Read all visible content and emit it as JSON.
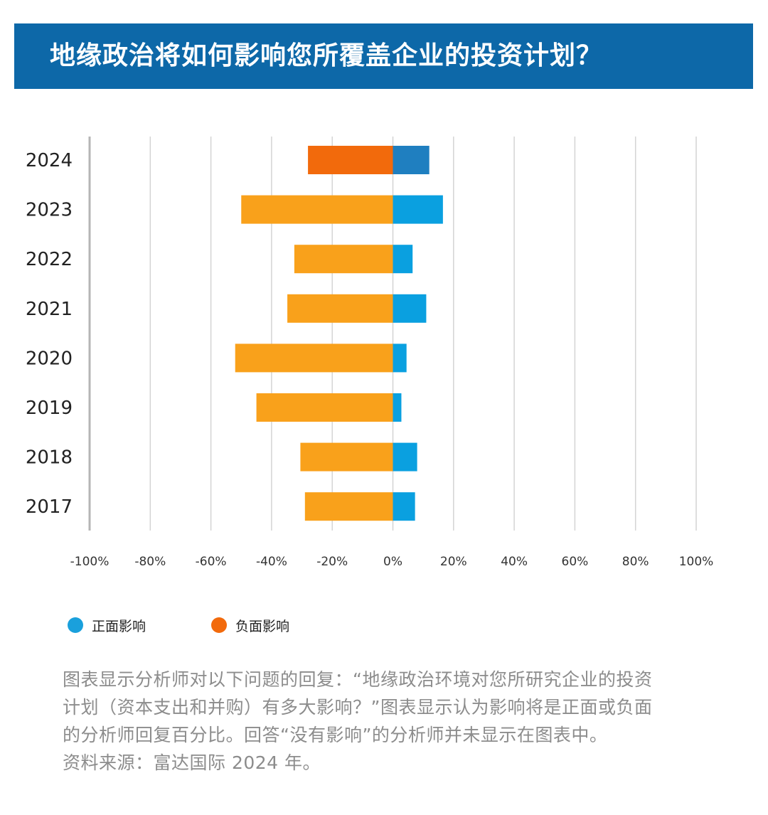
{
  "header": {
    "title": "地缘政治将如何影响您所覆盖企业的投资计划？",
    "background": "#0d68a8"
  },
  "chart_data": {
    "type": "bar",
    "orientation": "horizontal",
    "categories": [
      "2024",
      "2023",
      "2022",
      "2021",
      "2020",
      "2019",
      "2018",
      "2017"
    ],
    "x_ticks": [
      "-100%",
      "-80%",
      "-60%",
      "-40%",
      "-20%",
      "0%",
      "20%",
      "40%",
      "60%",
      "80%",
      "100%"
    ],
    "xlim": [
      -100,
      100
    ],
    "grid": true,
    "legend_position": "bottom-left",
    "series": [
      {
        "name": "正面影响",
        "values": [
          12,
          16.5,
          6.5,
          11,
          4.5,
          2.8,
          8,
          7.3
        ],
        "colors": [
          "#1f7fc0",
          "#0aa0e0",
          "#0aa0e0",
          "#0aa0e0",
          "#0aa0e0",
          "#0aa0e0",
          "#0aa0e0",
          "#0aa0e0"
        ]
      },
      {
        "name": "负面影响",
        "values": [
          -28,
          -50,
          -32.5,
          -34.8,
          -52,
          -45,
          -30.5,
          -29
        ],
        "colors": [
          "#f26a0c",
          "#f9a11b",
          "#f9a11b",
          "#f9a11b",
          "#f9a11b",
          "#f9a11b",
          "#f9a11b",
          "#f9a11b"
        ]
      }
    ]
  },
  "legend": {
    "items": [
      {
        "label": "正面影响",
        "color": "#1aa0dc"
      },
      {
        "label": "负面影响",
        "color": "#f26a0c"
      }
    ]
  },
  "notes": {
    "line1": "图表显示分析师对以下问题的回复：“地缘政治环境对您所研究企业的投资",
    "line2": "计划（资本支出和并购）有多大影响？”图表显示认为影响将是正面或负面",
    "line3": "的分析师回复百分比。回答“没有影响”的分析师并未显示在图表中。",
    "line4": "资料来源：富达国际 2024 年。"
  }
}
